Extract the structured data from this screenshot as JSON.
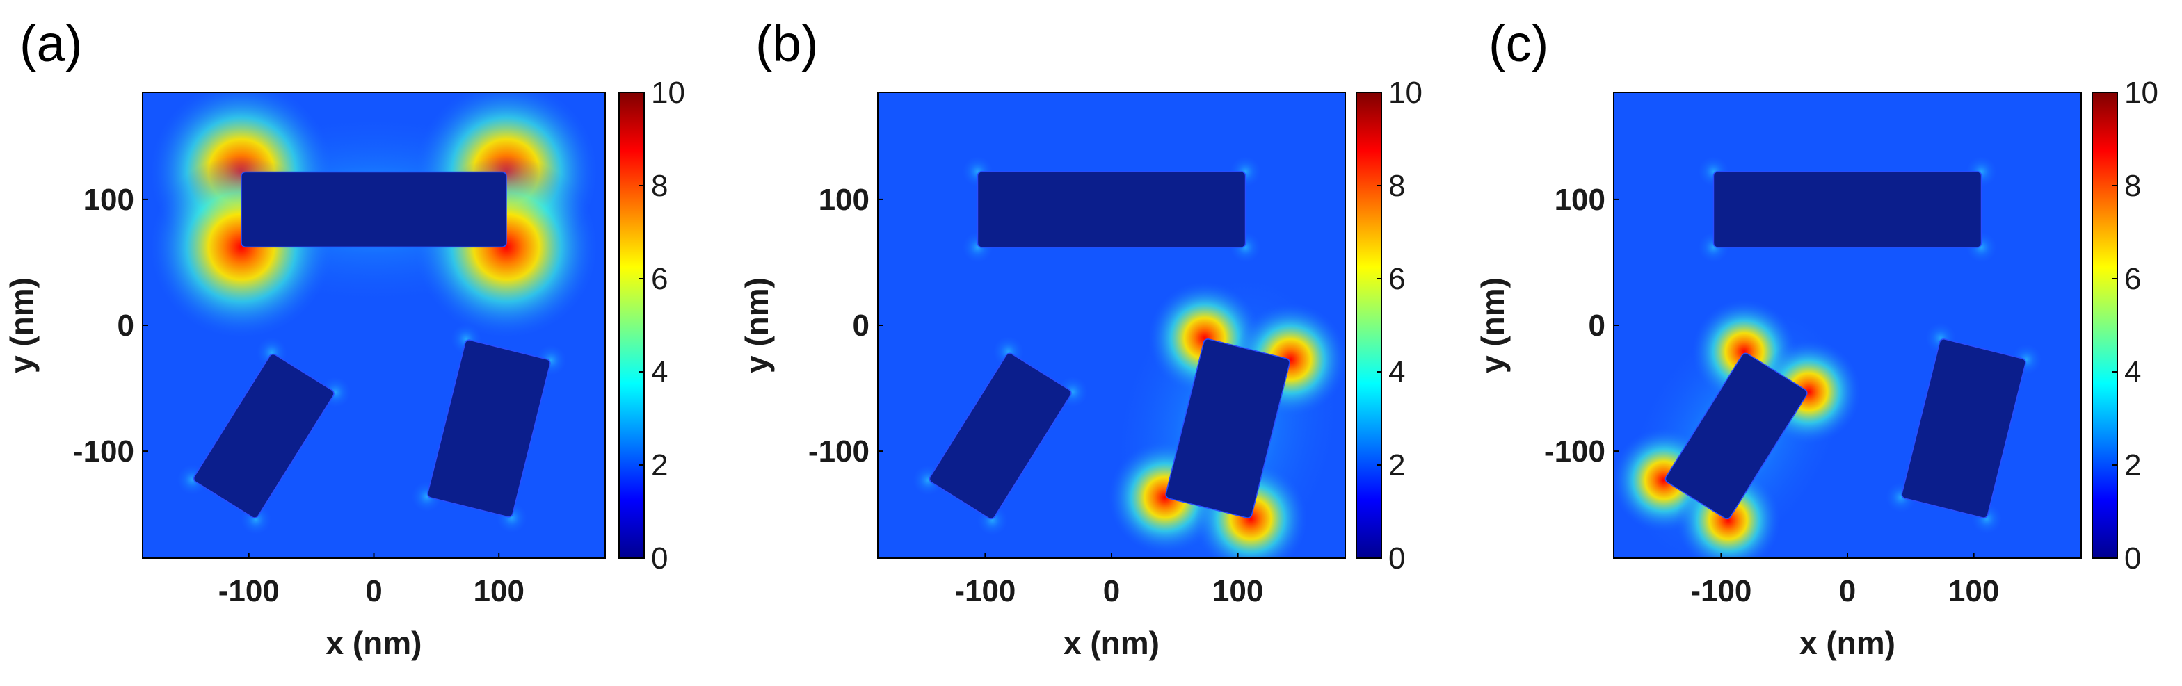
{
  "chart_data": [
    {
      "type": "heatmap",
      "panel_label": "(a)",
      "xlabel": "x (nm)",
      "ylabel": "y (nm)",
      "xlim": [
        -185,
        185
      ],
      "ylim": [
        -185,
        185
      ],
      "x_ticks": [
        -100,
        0,
        100
      ],
      "y_ticks": [
        -100,
        0,
        100
      ],
      "colorbar": {
        "range": [
          0,
          10
        ],
        "ticks": [
          0,
          2,
          4,
          6,
          8,
          10
        ],
        "colormap": "jet"
      },
      "grid": false,
      "rods": [
        {
          "cx": 0,
          "cy": 92,
          "length": 212,
          "width": 60,
          "angle_deg": 0,
          "excited": true
        },
        {
          "cx": -88,
          "cy": -88,
          "length": 120,
          "width": 60,
          "angle_deg": 58,
          "excited": false
        },
        {
          "cx": 92,
          "cy": -82,
          "length": 130,
          "width": 70,
          "angle_deg": 76,
          "excited": false
        }
      ]
    },
    {
      "type": "heatmap",
      "panel_label": "(b)",
      "xlabel": "x (nm)",
      "ylabel": "y (nm)",
      "xlim": [
        -185,
        185
      ],
      "ylim": [
        -185,
        185
      ],
      "x_ticks": [
        -100,
        0,
        100
      ],
      "y_ticks": [
        -100,
        0,
        100
      ],
      "colorbar": {
        "range": [
          0,
          10
        ],
        "ticks": [
          0,
          2,
          4,
          6,
          8,
          10
        ],
        "colormap": "jet"
      },
      "grid": false,
      "rods": [
        {
          "cx": 0,
          "cy": 92,
          "length": 212,
          "width": 60,
          "angle_deg": 0,
          "excited": false
        },
        {
          "cx": -88,
          "cy": -88,
          "length": 120,
          "width": 60,
          "angle_deg": 58,
          "excited": false
        },
        {
          "cx": 92,
          "cy": -82,
          "length": 130,
          "width": 70,
          "angle_deg": 76,
          "excited": true
        }
      ]
    },
    {
      "type": "heatmap",
      "panel_label": "(c)",
      "xlabel": "x (nm)",
      "ylabel": "y (nm)",
      "xlim": [
        -185,
        185
      ],
      "ylim": [
        -185,
        185
      ],
      "x_ticks": [
        -100,
        0,
        100
      ],
      "y_ticks": [
        -100,
        0,
        100
      ],
      "colorbar": {
        "range": [
          0,
          10
        ],
        "ticks": [
          0,
          2,
          4,
          6,
          8,
          10
        ],
        "colormap": "jet"
      },
      "grid": false,
      "rods": [
        {
          "cx": 0,
          "cy": 92,
          "length": 212,
          "width": 60,
          "angle_deg": 0,
          "excited": false
        },
        {
          "cx": -88,
          "cy": -88,
          "length": 120,
          "width": 60,
          "angle_deg": 58,
          "excited": true
        },
        {
          "cx": 92,
          "cy": -82,
          "length": 130,
          "width": 70,
          "angle_deg": 76,
          "excited": false
        }
      ]
    }
  ]
}
